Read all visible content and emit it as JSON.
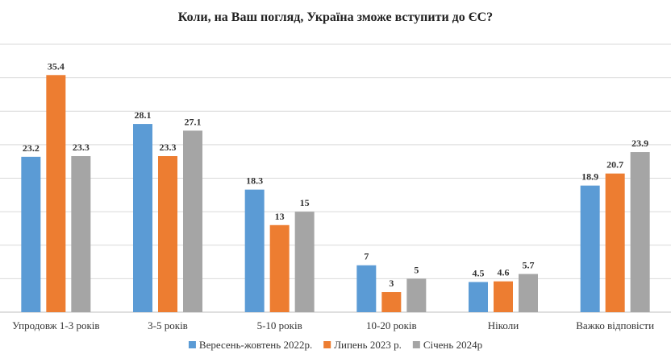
{
  "chart_data": {
    "type": "bar",
    "title": "Коли, на Ваш погляд, Україна зможе вступити до ЄС?",
    "xlabel": "",
    "ylabel": "",
    "ylim": [
      0,
      40
    ],
    "grid": true,
    "legend_position": "bottom",
    "categories": [
      "Упродовж 1-3 років",
      "3-5 років",
      "5-10 років",
      "10-20 років",
      "Ніколи",
      "Важко відповісти"
    ],
    "series": [
      {
        "name": "Вересень-жовтень 2022р.",
        "color": "#5b9bd5",
        "values": [
          23.2,
          28.1,
          18.3,
          7,
          4.5,
          18.9
        ]
      },
      {
        "name": "Липень 2023 р.",
        "color": "#ed7d31",
        "values": [
          35.4,
          23.3,
          13,
          3,
          4.6,
          20.7
        ]
      },
      {
        "name": "Січень 2024р",
        "color": "#a5a5a5",
        "values": [
          23.3,
          27.1,
          15,
          5,
          5.7,
          23.9
        ]
      }
    ]
  }
}
